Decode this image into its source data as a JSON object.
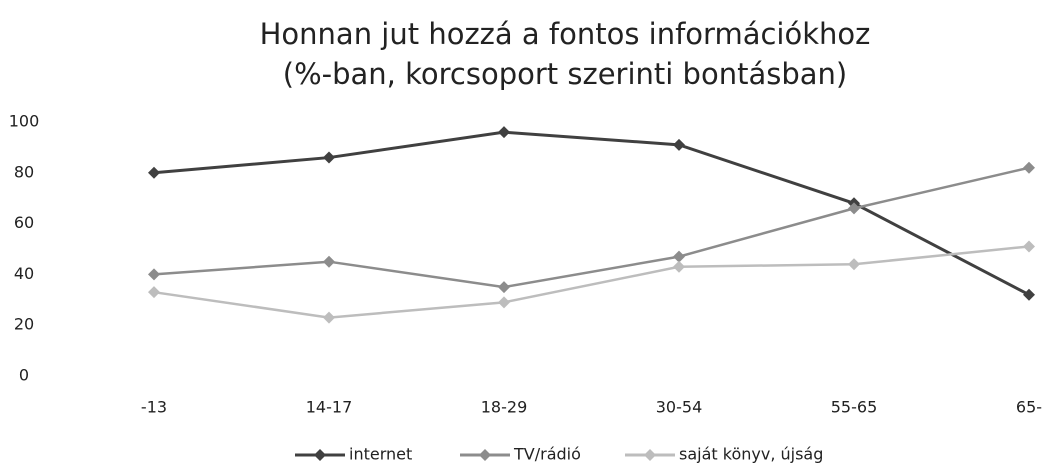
{
  "chart_data": {
    "type": "line",
    "title": [
      "Honnan jut hozzá a fontos információkhoz",
      "(%-ban, korcsoport szerinti bontásban)"
    ],
    "categories": [
      "-13",
      "14-17",
      "18-29",
      "30-54",
      "55-65",
      "65-"
    ],
    "series": [
      {
        "name": "internet",
        "color": "#404040",
        "values": [
          80,
          86,
          96,
          91,
          68,
          32
        ]
      },
      {
        "name": "TV/rádió",
        "color": "#8c8c8c",
        "values": [
          40,
          45,
          35,
          47,
          66,
          82
        ]
      },
      {
        "name": "saját könyv, újság",
        "color": "#bdbdbd",
        "values": [
          33,
          23,
          29,
          43,
          44,
          51
        ]
      }
    ],
    "ylim": [
      0,
      100
    ],
    "yticks": [
      0,
      20,
      40,
      60,
      80,
      100
    ],
    "grid": false,
    "legend": "bottom"
  }
}
